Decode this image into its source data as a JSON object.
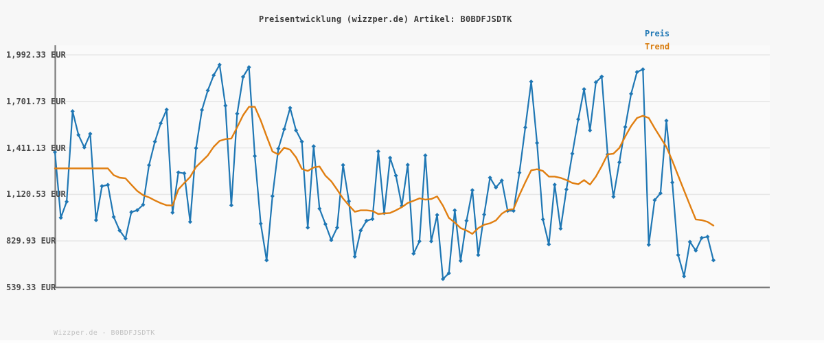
{
  "title": "Preisentwicklung (wizzper.de) Artikel: B0BDFJSDTK",
  "legend": {
    "preis_label": "Preis",
    "trend_label": "Trend"
  },
  "footer": "Wizzper.de - B0BDFJSDTK",
  "colors": {
    "preis": "#1f77b4",
    "trend": "#e07e10",
    "grid": "#e7e7e7",
    "axis": "#7b7b7b",
    "plot_bg": "#fafafa",
    "page_bg": "#f7f7f7",
    "title_text": "#3a3a3a",
    "tick_text": "#4a4a4a",
    "footer_text": "#c2c2c2"
  },
  "y_axis": {
    "tick_labels": [
      "1,992.33 EUR",
      "1,701.73 EUR",
      "1,411.13 EUR",
      "1,120.53 EUR",
      "829.93 EUR",
      "539.33 EUR"
    ],
    "tick_values": [
      1992.33,
      1701.73,
      1411.13,
      1120.53,
      829.93,
      539.33
    ],
    "unit": "EUR"
  },
  "chart_data": {
    "type": "line",
    "title": "Preisentwicklung (wizzper.de) Artikel: B0BDFJSDTK",
    "ylabel": "EUR",
    "ylim": [
      539.33,
      1992.33
    ],
    "grid": true,
    "legend_position": "top-right",
    "y_tick_values": [
      1992.33,
      1701.73,
      1411.13,
      1120.53,
      829.93,
      539.33
    ],
    "series": [
      {
        "name": "Preis",
        "color": "#1f77b4",
        "marker": "diamond",
        "values": [
          1385,
          975,
          1075,
          1640,
          1492,
          1414,
          1499,
          960,
          1172,
          1180,
          980,
          895,
          845,
          1010,
          1022,
          1056,
          1303,
          1450,
          1565,
          1650,
          1007,
          1258,
          1252,
          949,
          1410,
          1648,
          1770,
          1865,
          1930,
          1675,
          1053,
          1625,
          1855,
          1915,
          1360,
          938,
          709,
          1110,
          1407,
          1528,
          1661,
          1521,
          1450,
          913,
          1421,
          1032,
          935,
          835,
          913,
          1304,
          1078,
          732,
          895,
          956,
          967,
          1389,
          1004,
          1349,
          1238,
          1049,
          1305,
          750,
          828,
          1364,
          828,
          992,
          592,
          628,
          1021,
          706,
          956,
          1147,
          742,
          995,
          1225,
          1164,
          1207,
          1018,
          1018,
          1256,
          1539,
          1825,
          1442,
          964,
          809,
          1181,
          907,
          1152,
          1375,
          1590,
          1778,
          1521,
          1821,
          1857,
          1371,
          1106,
          1321,
          1542,
          1749,
          1885,
          1902,
          806,
          1085,
          1128,
          1581,
          1195,
          742,
          609,
          824,
          770,
          849,
          856,
          709
        ]
      },
      {
        "name": "Trend",
        "color": "#e07e10",
        "marker": "none",
        "values": [
          1283,
          1283,
          1283,
          1283,
          1283,
          1283,
          1283,
          1283,
          1283,
          1283,
          1241,
          1225,
          1221,
          1181,
          1142,
          1116,
          1102,
          1083,
          1066,
          1053,
          1051,
          1152,
          1192,
          1230,
          1292,
          1328,
          1364,
          1418,
          1455,
          1466,
          1470,
          1540,
          1615,
          1668,
          1668,
          1583,
          1483,
          1389,
          1370,
          1413,
          1400,
          1353,
          1280,
          1267,
          1289,
          1295,
          1238,
          1203,
          1150,
          1095,
          1052,
          1012,
          1021,
          1021,
          1017,
          998,
          1002,
          1005,
          1021,
          1041,
          1067,
          1081,
          1096,
          1088,
          1092,
          1108,
          1050,
          974,
          945,
          910,
          895,
          874,
          910,
          931,
          940,
          958,
          1000,
          1023,
          1030,
          1117,
          1196,
          1271,
          1278,
          1267,
          1232,
          1232,
          1224,
          1210,
          1192,
          1184,
          1210,
          1182,
          1232,
          1297,
          1371,
          1375,
          1411,
          1483,
          1548,
          1598,
          1612,
          1598,
          1534,
          1476,
          1417,
          1331,
          1238,
          1145,
          1053,
          964,
          960,
          949,
          926
        ]
      }
    ]
  }
}
